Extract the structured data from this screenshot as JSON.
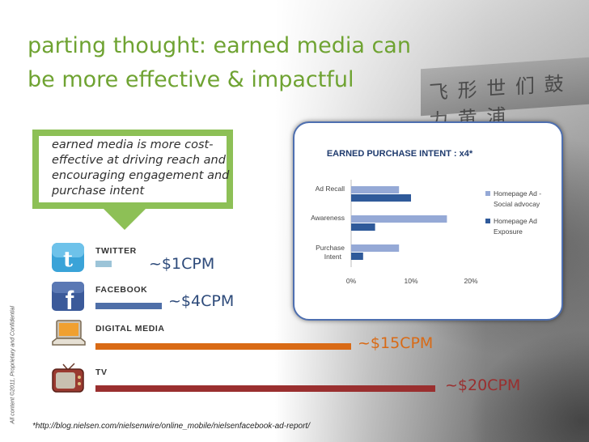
{
  "title": {
    "line1": "parting thought: earned media can",
    "line2": "be more effective & impactful"
  },
  "sidebar_text": "All content ©2011, Proprietary and Confidential",
  "callout": {
    "text": "earned media is more cost-effective at driving reach and encouraging engagement and purchase intent"
  },
  "channels": [
    {
      "name": "TWITTER",
      "cpm": "~$1CPM",
      "bar_value": 1,
      "bar_color": "#9cc4d8",
      "cpm_color": "#2d4a7a",
      "icon": "twitter-icon"
    },
    {
      "name": "FACEBOOK",
      "cpm": "~$4CPM",
      "bar_value": 4,
      "bar_color": "#4f6fa8",
      "cpm_color": "#2d4a7a",
      "icon": "facebook-icon"
    },
    {
      "name": "DIGITAL MEDIA",
      "cpm": "~$15CPM",
      "bar_value": 15,
      "bar_color": "#d96a15",
      "cpm_color": "#d96a15",
      "icon": "laptop-icon"
    },
    {
      "name": "TV",
      "cpm": "~$20CPM",
      "bar_value": 20,
      "bar_color": "#9a2f2f",
      "cpm_color": "#9a2f2f",
      "icon": "tv-icon"
    }
  ],
  "chart_data": {
    "type": "bar",
    "orientation": "horizontal",
    "title": "EARNED PURCHASE INTENT : x4*",
    "categories": [
      "Ad Recall",
      "Awareness",
      "Purchase Intent"
    ],
    "series": [
      {
        "name": "Homepage Ad - Social advocay",
        "color": "#95a9d6",
        "values": [
          8,
          16,
          8
        ]
      },
      {
        "name": "Homepage Ad Exposure",
        "color": "#2f5a9a",
        "values": [
          10,
          4,
          2
        ]
      }
    ],
    "xlim": [
      0,
      20
    ],
    "xticks": [
      "0%",
      "10%",
      "20%"
    ],
    "legend": "right",
    "grid": false
  },
  "footnote": "*http://blog.nielsen.com/nielsenwire/online_mobile/nielsenfacebook-ad-report/"
}
